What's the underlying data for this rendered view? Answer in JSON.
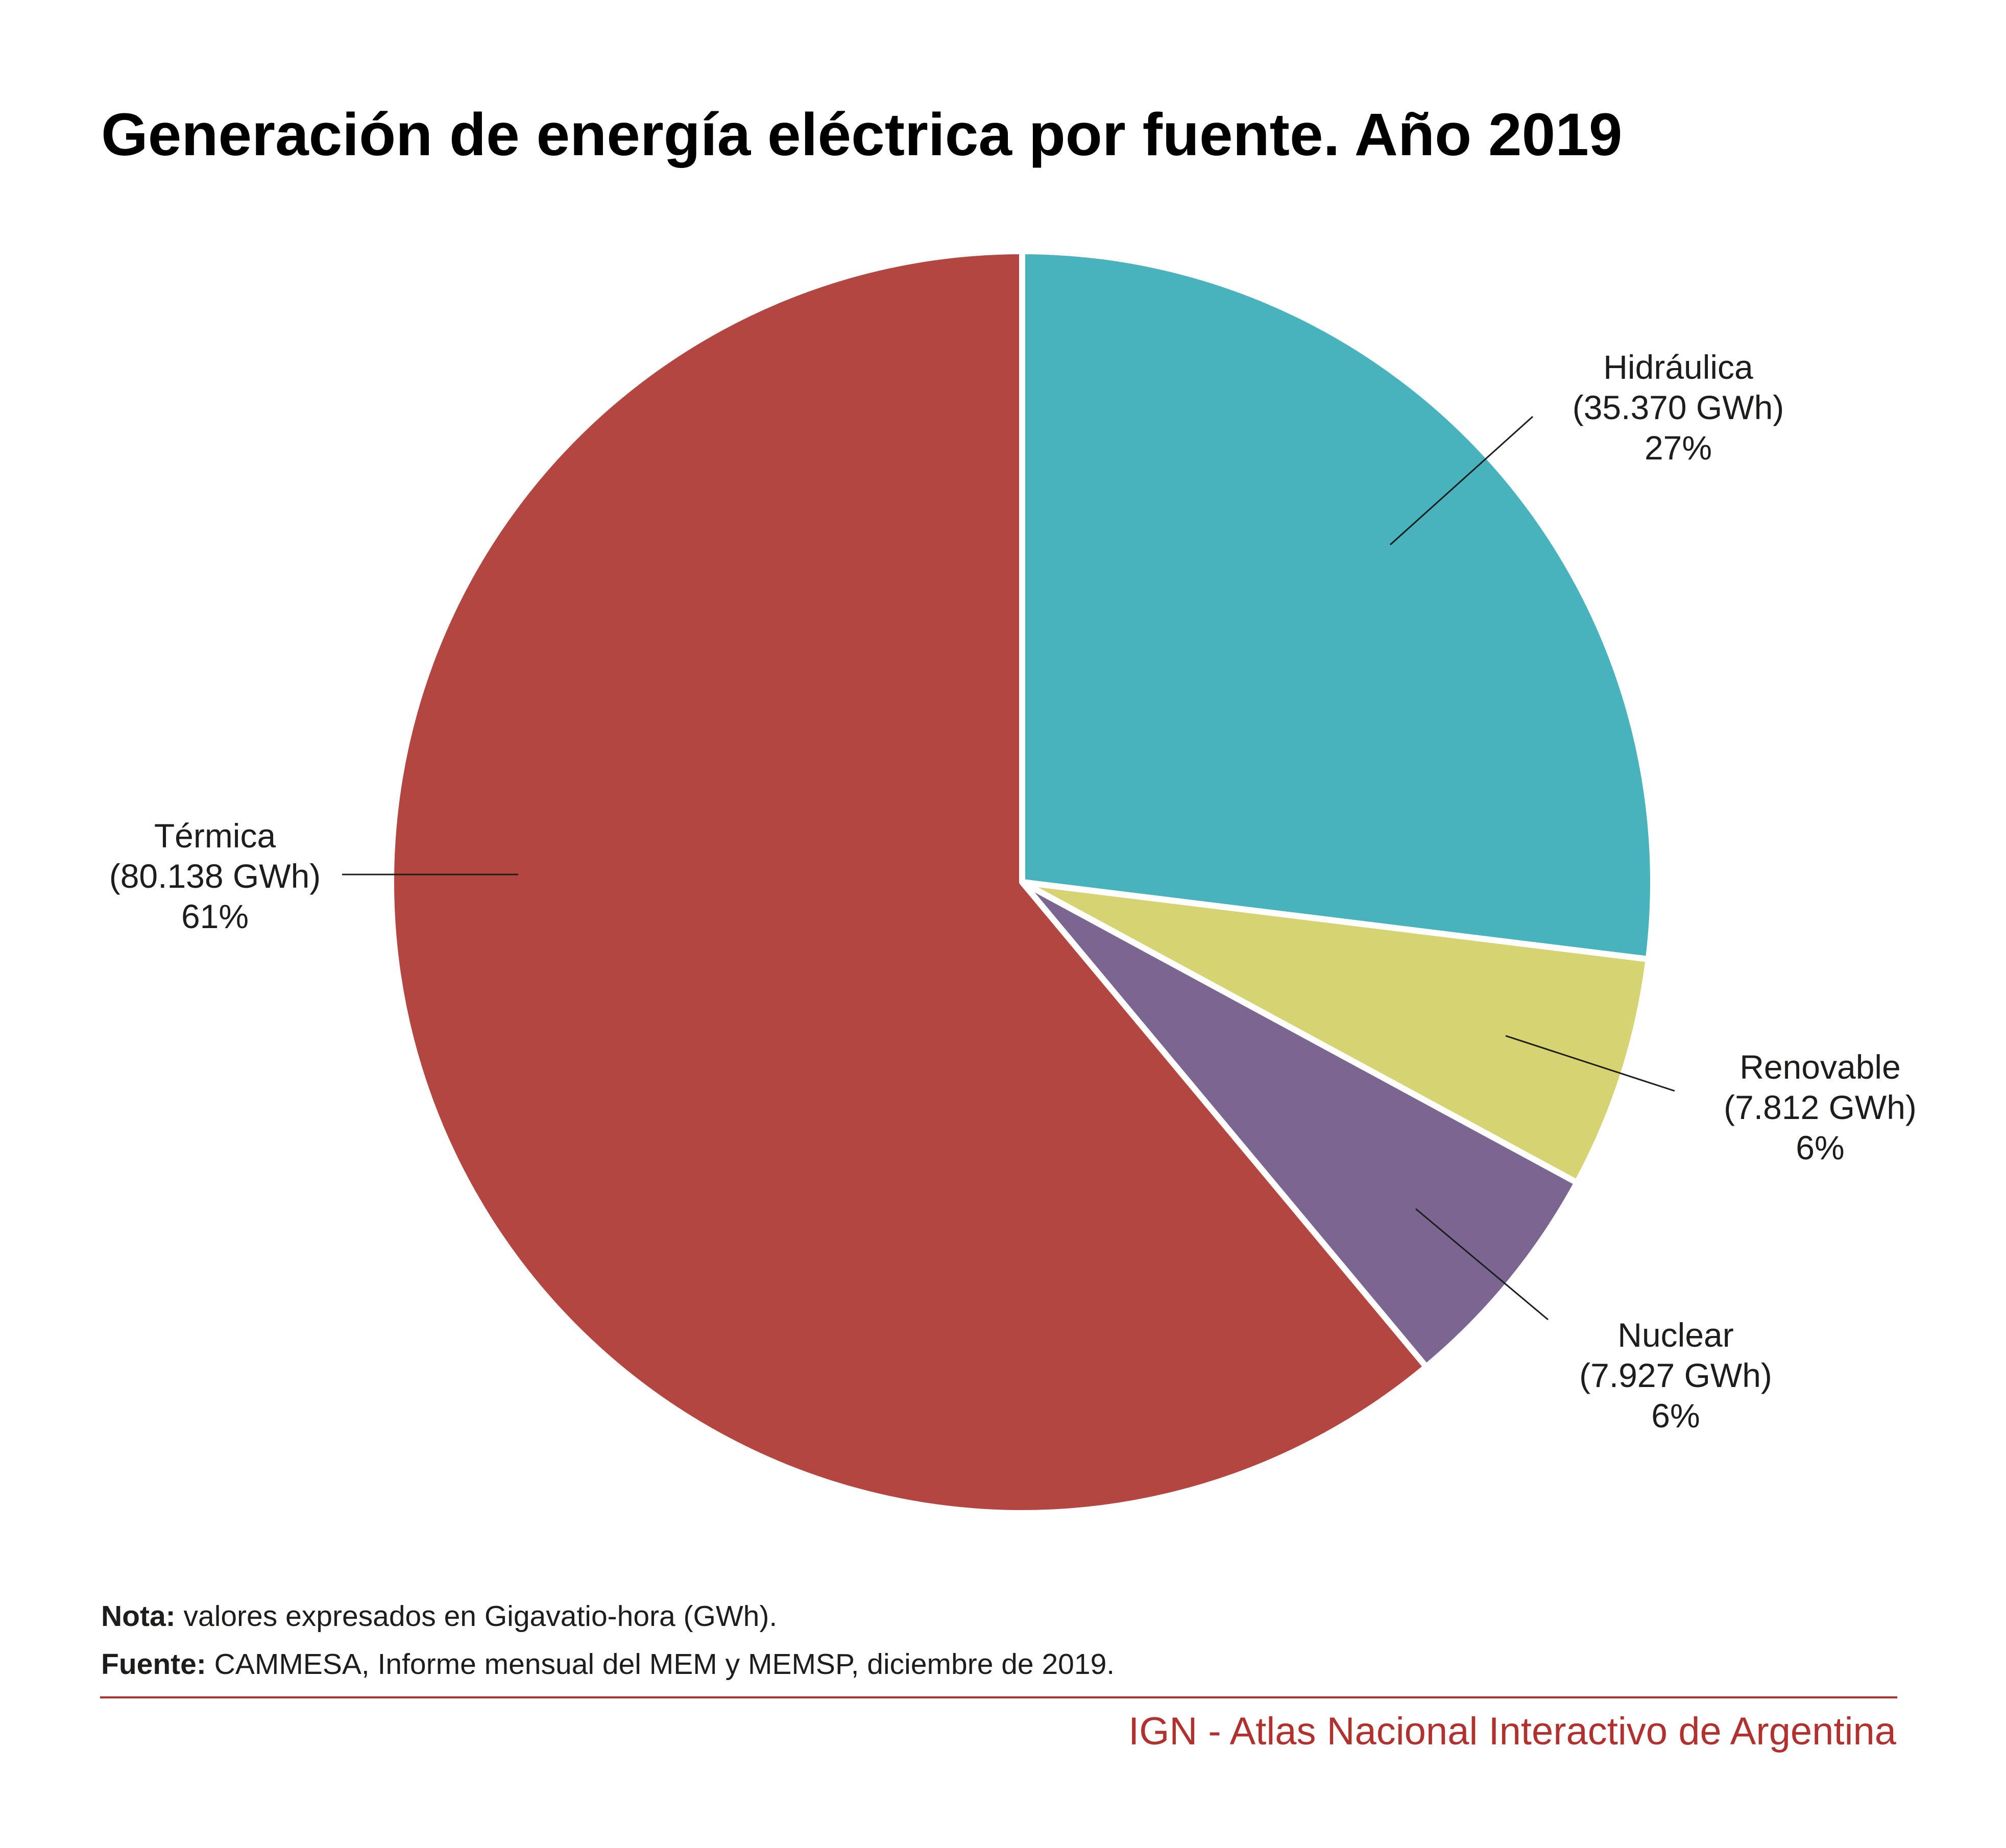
{
  "chart_data": {
    "type": "pie",
    "title": "Generación de energía eléctrica por fuente. Año 2019",
    "unit": "GWh",
    "start_angle_deg": 0,
    "direction": "clockwise",
    "slices": [
      {
        "name": "Hidráulica",
        "value": 35370,
        "value_label": "(35.370 GWh)",
        "percent_label": "27%",
        "color": "#48b2bd"
      },
      {
        "name": "Renovable",
        "value": 7812,
        "value_label": "(7.812 GWh)",
        "percent_label": "6%",
        "color": "#d5d372"
      },
      {
        "name": "Nuclear",
        "value": 7927,
        "value_label": "(7.927 GWh)",
        "percent_label": "6%",
        "color": "#7b6692"
      },
      {
        "name": "Térmica",
        "value": 80138,
        "value_label": "(80.138 GWh)",
        "percent_label": "61%",
        "color": "#b44641"
      }
    ],
    "legend": "none (direct labels with leader lines)"
  },
  "notes": {
    "nota_label": "Nota:",
    "nota_text": " valores expresados en Gigavatio-hora (GWh).",
    "fuente_label": "Fuente:",
    "fuente_text": " CAMMESA, Informe mensual del MEM y MEMSP, diciembre de 2019."
  },
  "footer": {
    "brand": "IGN - Atlas Nacional Interactivo de Argentina",
    "accent_color": "#b0312e"
  }
}
